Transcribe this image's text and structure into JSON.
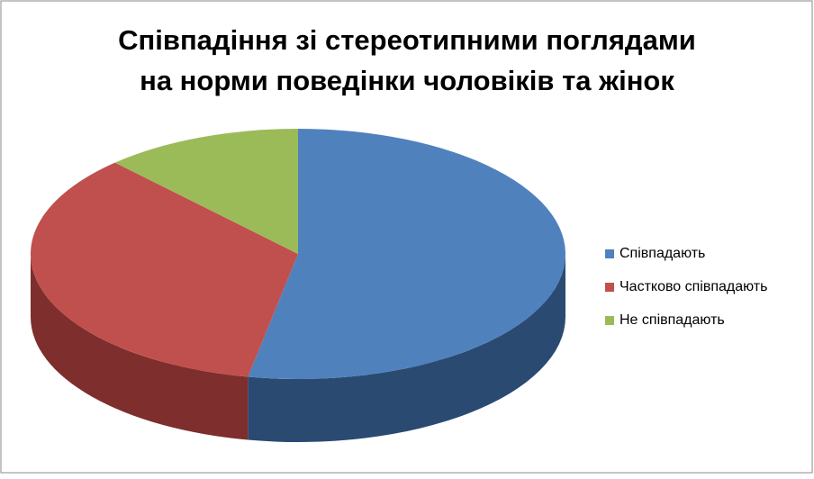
{
  "chart_data": {
    "type": "pie3d",
    "title": [
      "Співпадіння зі стереотипними поглядами",
      "на норми поведінки чоловіків та жінок"
    ],
    "categories": [
      "Співпадають",
      "Частково співпадають",
      "Не співпадають"
    ],
    "values": [
      53,
      35,
      12
    ],
    "colors": [
      "#4f81bd",
      "#c0504d",
      "#9bbb59"
    ],
    "side_colors": [
      "#2a4a72",
      "#7e2e2c",
      "#5f7a30"
    ],
    "legend": "right"
  }
}
